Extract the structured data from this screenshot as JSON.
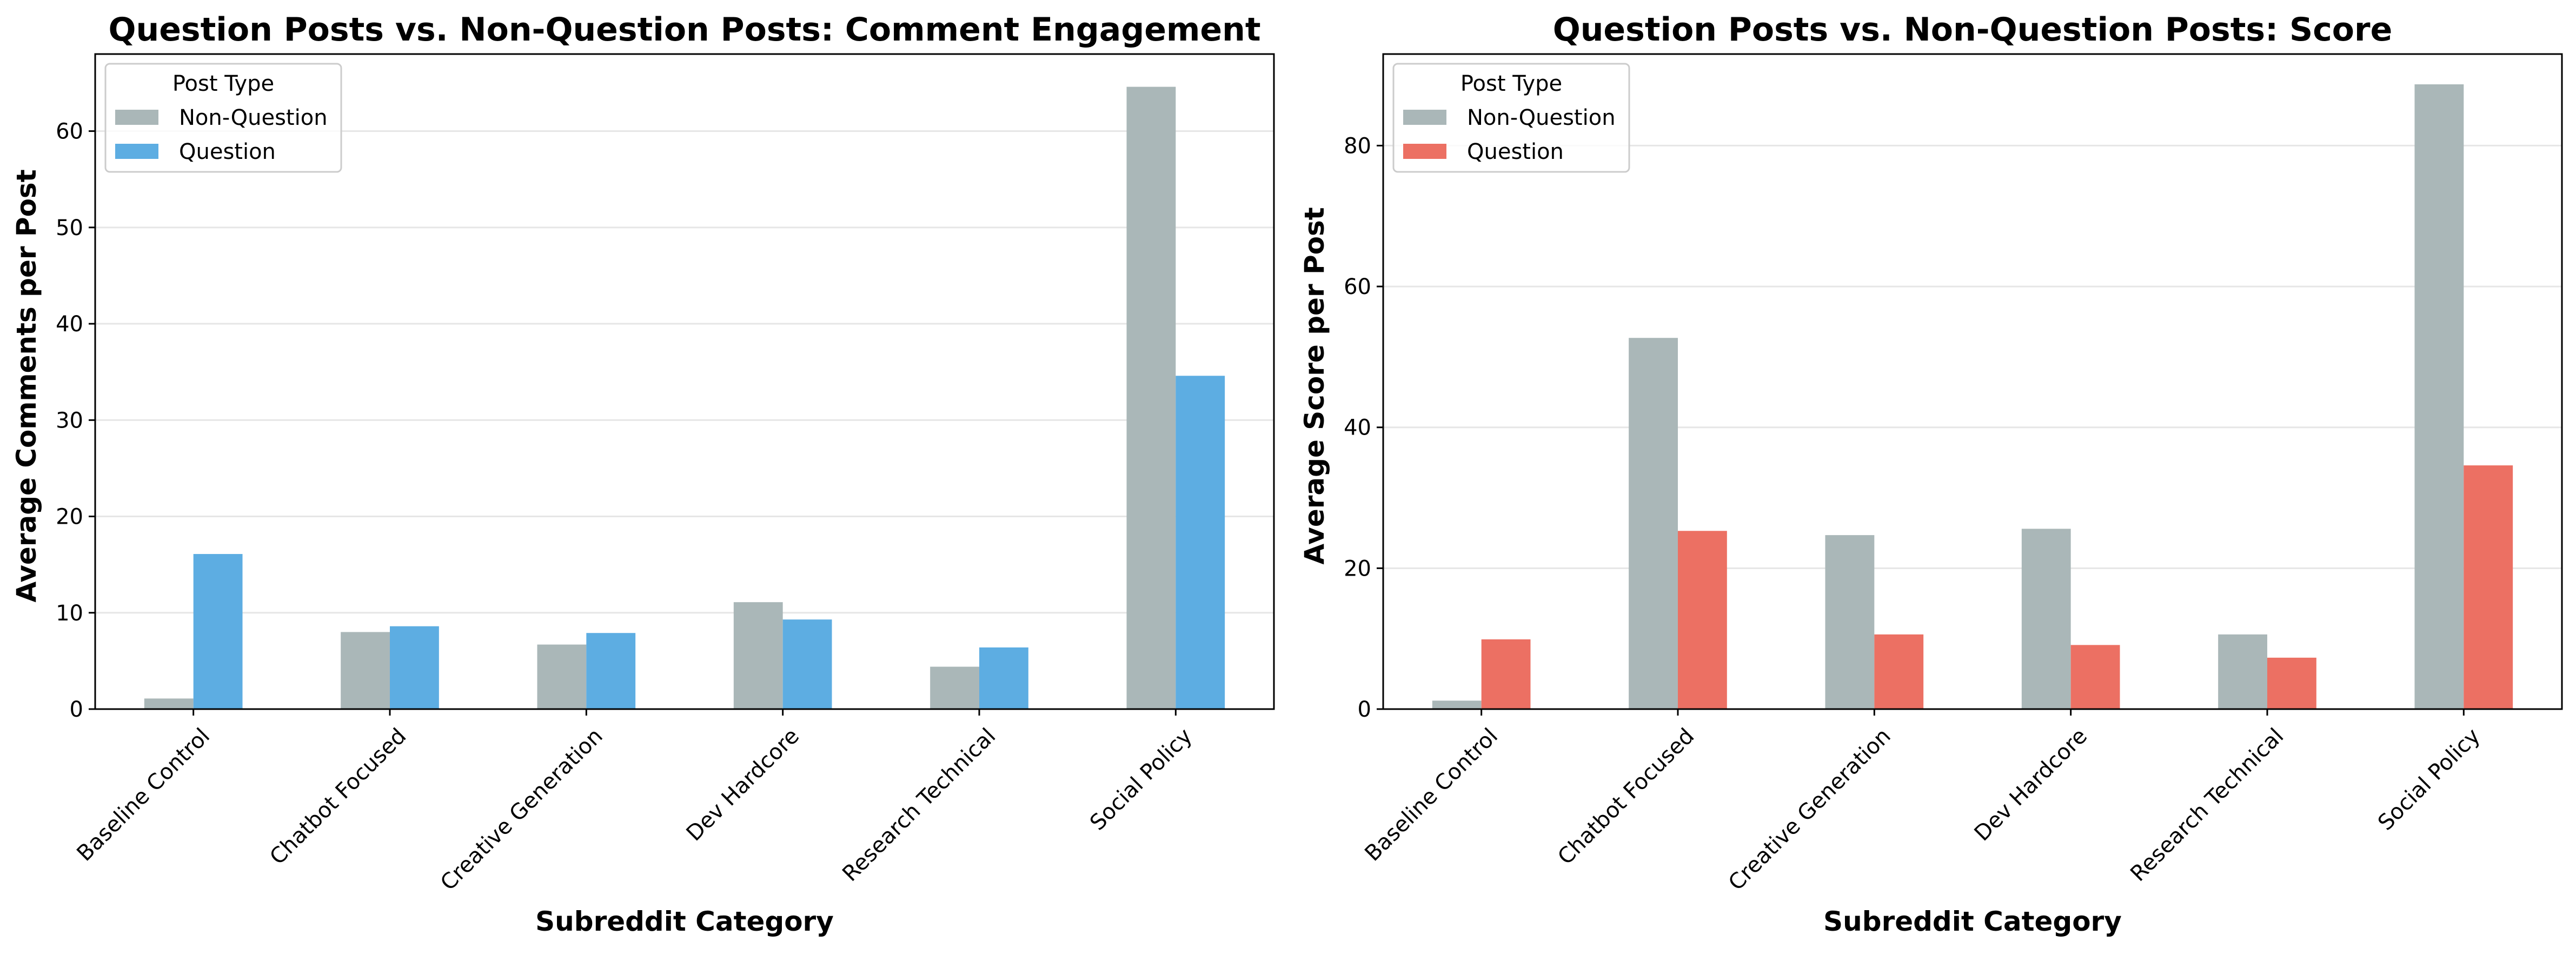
{
  "chart_data": [
    {
      "type": "bar",
      "title": "Question Posts vs. Non-Question Posts: Comment Engagement",
      "xlabel": "Subreddit Category",
      "ylabel": "Average Comments per Post",
      "categories": [
        "Baseline Control",
        "Chatbot Focused",
        "Creative Generation",
        "Dev Hardcore",
        "Research Technical",
        "Social Policy"
      ],
      "series": [
        {
          "name": "Non-Question",
          "color": "#aab7b8",
          "values": [
            1.1,
            8.0,
            6.7,
            11.1,
            4.4,
            64.6
          ]
        },
        {
          "name": "Question",
          "color": "#5dade2",
          "values": [
            16.1,
            8.6,
            7.9,
            9.3,
            6.4,
            34.6
          ]
        }
      ],
      "ylim": [
        0,
        68
      ],
      "yticks": [
        0,
        10,
        20,
        30,
        40,
        50,
        60
      ],
      "grid": "y",
      "legend": {
        "title": "Post Type",
        "position": "top-left"
      }
    },
    {
      "type": "bar",
      "title": "Question Posts vs. Non-Question Posts: Score",
      "xlabel": "Subreddit Category",
      "ylabel": "Average Score per Post",
      "categories": [
        "Baseline Control",
        "Chatbot Focused",
        "Creative Generation",
        "Dev Hardcore",
        "Research Technical",
        "Social Policy"
      ],
      "series": [
        {
          "name": "Non-Question",
          "color": "#aab7b8",
          "values": [
            1.2,
            52.7,
            24.7,
            25.6,
            10.6,
            88.7
          ]
        },
        {
          "name": "Question",
          "color": "#ec7063",
          "values": [
            9.9,
            25.3,
            10.6,
            9.1,
            7.3,
            34.6
          ]
        }
      ],
      "ylim": [
        0,
        93
      ],
      "yticks": [
        0,
        20,
        40,
        60,
        80
      ],
      "grid": "y",
      "legend": {
        "title": "Post Type",
        "position": "top-left"
      }
    }
  ]
}
